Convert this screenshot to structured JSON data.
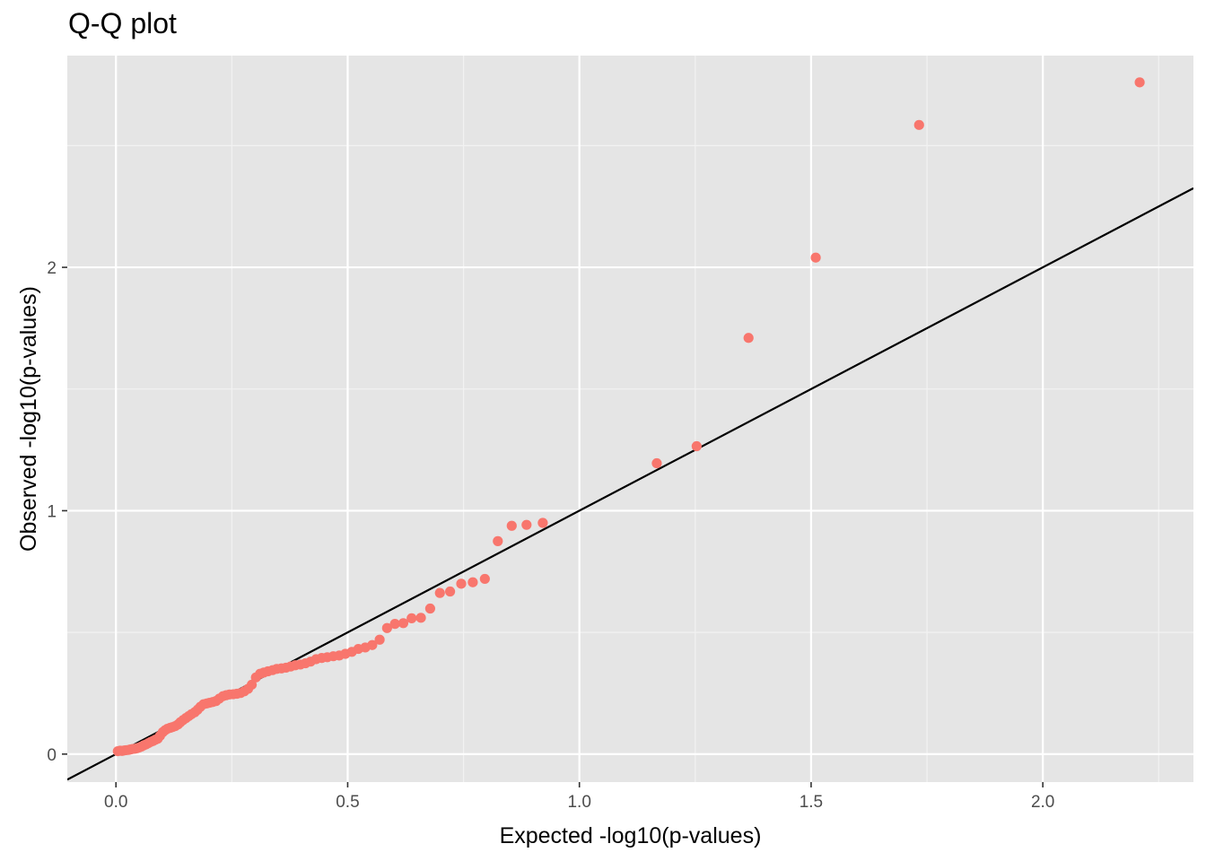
{
  "chart_data": {
    "type": "scatter",
    "title": "Q-Q plot",
    "xlabel": "Expected -log10(p-values)",
    "ylabel": "Observed -log10(p-values)",
    "xlim": [
      -0.105,
      2.325
    ],
    "ylim": [
      -0.115,
      2.87
    ],
    "x_ticks": [
      0.0,
      0.5,
      1.0,
      1.5,
      2.0
    ],
    "x_tick_labels": [
      "0.0",
      "0.5",
      "1.0",
      "1.5",
      "2.0"
    ],
    "y_ticks": [
      0,
      1,
      2
    ],
    "y_tick_labels": [
      "0",
      "1",
      "2"
    ],
    "grid": true,
    "panel_background": "#e5e5e5",
    "point_color": "#f8766d",
    "reference_line": {
      "slope": 1,
      "intercept": 0,
      "color": "#000000"
    },
    "points": [
      {
        "x": 0.004,
        "y": 0.012
      },
      {
        "x": 0.009,
        "y": 0.014
      },
      {
        "x": 0.013,
        "y": 0.013
      },
      {
        "x": 0.018,
        "y": 0.015
      },
      {
        "x": 0.022,
        "y": 0.016
      },
      {
        "x": 0.027,
        "y": 0.017
      },
      {
        "x": 0.031,
        "y": 0.019
      },
      {
        "x": 0.036,
        "y": 0.021
      },
      {
        "x": 0.041,
        "y": 0.022
      },
      {
        "x": 0.045,
        "y": 0.024
      },
      {
        "x": 0.05,
        "y": 0.027
      },
      {
        "x": 0.055,
        "y": 0.031
      },
      {
        "x": 0.06,
        "y": 0.036
      },
      {
        "x": 0.065,
        "y": 0.04
      },
      {
        "x": 0.07,
        "y": 0.045
      },
      {
        "x": 0.075,
        "y": 0.05
      },
      {
        "x": 0.08,
        "y": 0.054
      },
      {
        "x": 0.085,
        "y": 0.059
      },
      {
        "x": 0.09,
        "y": 0.063
      },
      {
        "x": 0.095,
        "y": 0.075
      },
      {
        "x": 0.101,
        "y": 0.09
      },
      {
        "x": 0.106,
        "y": 0.098
      },
      {
        "x": 0.111,
        "y": 0.104
      },
      {
        "x": 0.117,
        "y": 0.108
      },
      {
        "x": 0.122,
        "y": 0.111
      },
      {
        "x": 0.128,
        "y": 0.115
      },
      {
        "x": 0.134,
        "y": 0.122
      },
      {
        "x": 0.139,
        "y": 0.131
      },
      {
        "x": 0.145,
        "y": 0.14
      },
      {
        "x": 0.151,
        "y": 0.148
      },
      {
        "x": 0.157,
        "y": 0.156
      },
      {
        "x": 0.163,
        "y": 0.164
      },
      {
        "x": 0.17,
        "y": 0.172
      },
      {
        "x": 0.176,
        "y": 0.182
      },
      {
        "x": 0.182,
        "y": 0.194
      },
      {
        "x": 0.189,
        "y": 0.205
      },
      {
        "x": 0.196,
        "y": 0.208
      },
      {
        "x": 0.202,
        "y": 0.211
      },
      {
        "x": 0.209,
        "y": 0.214
      },
      {
        "x": 0.216,
        "y": 0.218
      },
      {
        "x": 0.223,
        "y": 0.228
      },
      {
        "x": 0.231,
        "y": 0.238
      },
      {
        "x": 0.238,
        "y": 0.242
      },
      {
        "x": 0.245,
        "y": 0.245
      },
      {
        "x": 0.253,
        "y": 0.246
      },
      {
        "x": 0.261,
        "y": 0.248
      },
      {
        "x": 0.269,
        "y": 0.251
      },
      {
        "x": 0.277,
        "y": 0.258
      },
      {
        "x": 0.285,
        "y": 0.268
      },
      {
        "x": 0.293,
        "y": 0.285
      },
      {
        "x": 0.302,
        "y": 0.315
      },
      {
        "x": 0.311,
        "y": 0.33
      },
      {
        "x": 0.319,
        "y": 0.335
      },
      {
        "x": 0.328,
        "y": 0.34
      },
      {
        "x": 0.338,
        "y": 0.345
      },
      {
        "x": 0.347,
        "y": 0.35
      },
      {
        "x": 0.357,
        "y": 0.352
      },
      {
        "x": 0.367,
        "y": 0.355
      },
      {
        "x": 0.377,
        "y": 0.36
      },
      {
        "x": 0.387,
        "y": 0.365
      },
      {
        "x": 0.398,
        "y": 0.368
      },
      {
        "x": 0.409,
        "y": 0.373
      },
      {
        "x": 0.42,
        "y": 0.38
      },
      {
        "x": 0.432,
        "y": 0.39
      },
      {
        "x": 0.444,
        "y": 0.395
      },
      {
        "x": 0.456,
        "y": 0.398
      },
      {
        "x": 0.469,
        "y": 0.402
      },
      {
        "x": 0.482,
        "y": 0.405
      },
      {
        "x": 0.495,
        "y": 0.412
      },
      {
        "x": 0.509,
        "y": 0.42
      },
      {
        "x": 0.523,
        "y": 0.432
      },
      {
        "x": 0.538,
        "y": 0.438
      },
      {
        "x": 0.553,
        "y": 0.448
      },
      {
        "x": 0.569,
        "y": 0.47
      },
      {
        "x": 0.585,
        "y": 0.518
      },
      {
        "x": 0.602,
        "y": 0.535
      },
      {
        "x": 0.62,
        "y": 0.538
      },
      {
        "x": 0.638,
        "y": 0.558
      },
      {
        "x": 0.658,
        "y": 0.56
      },
      {
        "x": 0.678,
        "y": 0.598
      },
      {
        "x": 0.699,
        "y": 0.662
      },
      {
        "x": 0.721,
        "y": 0.668
      },
      {
        "x": 0.745,
        "y": 0.7
      },
      {
        "x": 0.77,
        "y": 0.706
      },
      {
        "x": 0.796,
        "y": 0.72
      },
      {
        "x": 0.824,
        "y": 0.875
      },
      {
        "x": 0.854,
        "y": 0.938
      },
      {
        "x": 0.886,
        "y": 0.942
      },
      {
        "x": 0.921,
        "y": 0.95
      },
      {
        "x": 1.167,
        "y": 1.195
      },
      {
        "x": 1.253,
        "y": 1.265
      },
      {
        "x": 1.365,
        "y": 1.71
      },
      {
        "x": 1.51,
        "y": 2.04
      },
      {
        "x": 1.733,
        "y": 2.585
      },
      {
        "x": 2.209,
        "y": 2.76
      }
    ]
  }
}
